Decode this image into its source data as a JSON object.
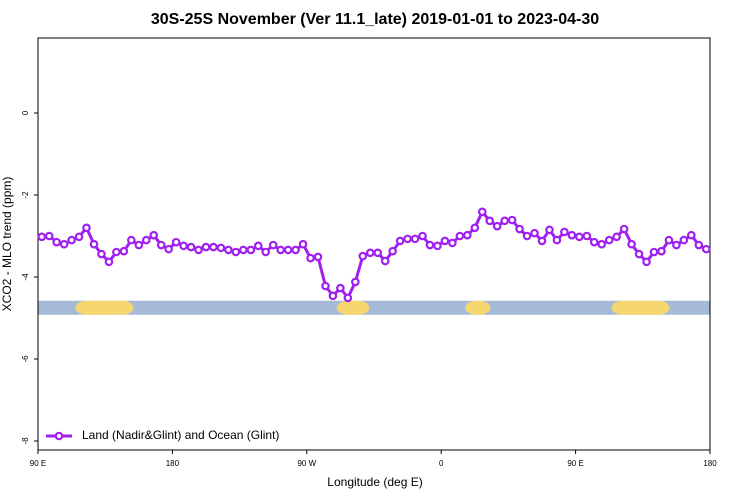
{
  "chart_data": {
    "type": "line",
    "title": "30S-25S November (Ver 11.1_late)   2019-01-01 to 2023-04-30",
    "x_label": "Longitude (deg E)",
    "y_label": "XCO2 - MLO trend (ppm)",
    "xlim": [
      90,
      540
    ],
    "ylim": [
      -8.22,
      1.83
    ],
    "xticks": [
      {
        "value": 90,
        "label": "90 E"
      },
      180,
      {
        "value": 270,
        "label": "90 W"
      },
      {
        "value": 360,
        "label": "0"
      },
      {
        "value": 450,
        "label": "90 E"
      },
      {
        "value": 540,
        "label": "180"
      }
    ],
    "yticks": [
      -8,
      -6,
      -4,
      -2,
      0
    ],
    "legend": "bottom-left",
    "land_ocean_bar": {
      "y": -4.75,
      "ocean_color": "#a6b9d6",
      "land_color": "#f6d76f",
      "land_spans": [
        [
          115,
          154
        ],
        [
          290,
          312
        ],
        [
          376,
          393
        ],
        [
          474,
          513
        ]
      ]
    },
    "x": [
      92.5,
      97.5,
      102.5,
      107.5,
      112.5,
      117.5,
      122.5,
      127.5,
      132.5,
      137.5,
      142.5,
      147.5,
      152.5,
      157.5,
      162.5,
      167.5,
      172.5,
      177.5,
      182.5,
      187.5,
      192.5,
      197.5,
      202.5,
      207.5,
      212.5,
      217.5,
      222.5,
      227.5,
      232.5,
      237.5,
      242.5,
      247.5,
      252.5,
      257.5,
      262.5,
      267.5,
      272.5,
      277.5,
      282.5,
      287.5,
      292.5,
      297.5,
      302.5,
      307.5,
      312.5,
      317.5,
      322.5,
      327.5,
      332.5,
      337.5,
      342.5,
      347.5,
      352.5,
      357.5,
      362.5,
      367.5,
      372.5,
      377.5,
      382.5,
      387.5,
      392.5,
      397.5,
      402.5,
      407.5,
      412.5,
      417.5,
      422.5,
      427.5,
      432.5,
      437.5,
      442.5,
      447.5,
      452.5,
      457.5,
      462.5,
      467.5,
      472.5,
      477.5,
      482.5,
      487.5,
      492.5,
      497.5,
      502.5,
      507.5,
      512.5,
      517.5,
      522.5,
      527.5,
      532.5,
      537.5
    ],
    "series": [
      {
        "name": "Land (Nadir&Glint) and Ocean (Glint)",
        "color": "#a020f0",
        "values": [
          -3.02,
          -3.0,
          -3.15,
          -3.2,
          -3.1,
          -3.02,
          -2.8,
          -3.2,
          -3.44,
          -3.63,
          -3.39,
          -3.37,
          -3.1,
          -3.22,
          -3.1,
          -2.98,
          -3.22,
          -3.32,
          -3.15,
          -3.24,
          -3.27,
          -3.34,
          -3.27,
          -3.27,
          -3.29,
          -3.34,
          -3.39,
          -3.34,
          -3.34,
          -3.24,
          -3.39,
          -3.22,
          -3.34,
          -3.34,
          -3.34,
          -3.2,
          -3.54,
          -3.51,
          -4.22,
          -4.46,
          -4.27,
          -4.51,
          -4.12,
          -3.49,
          -3.41,
          -3.41,
          -3.61,
          -3.37,
          -3.12,
          -3.07,
          -3.07,
          -3.0,
          -3.22,
          -3.24,
          -3.12,
          -3.17,
          -3.0,
          -2.98,
          -2.8,
          -2.41,
          -2.63,
          -2.76,
          -2.63,
          -2.61,
          -2.83,
          -3.0,
          -2.93,
          -3.12,
          -2.85,
          -3.1,
          -2.9,
          -2.98,
          -3.02,
          -3.0,
          -3.15,
          -3.2,
          -3.1,
          -3.02,
          -2.83,
          -3.2,
          -3.44,
          -3.63,
          -3.39,
          -3.37,
          -3.1,
          -3.22,
          -3.1,
          -2.98,
          -3.22,
          -3.32
        ]
      }
    ]
  }
}
